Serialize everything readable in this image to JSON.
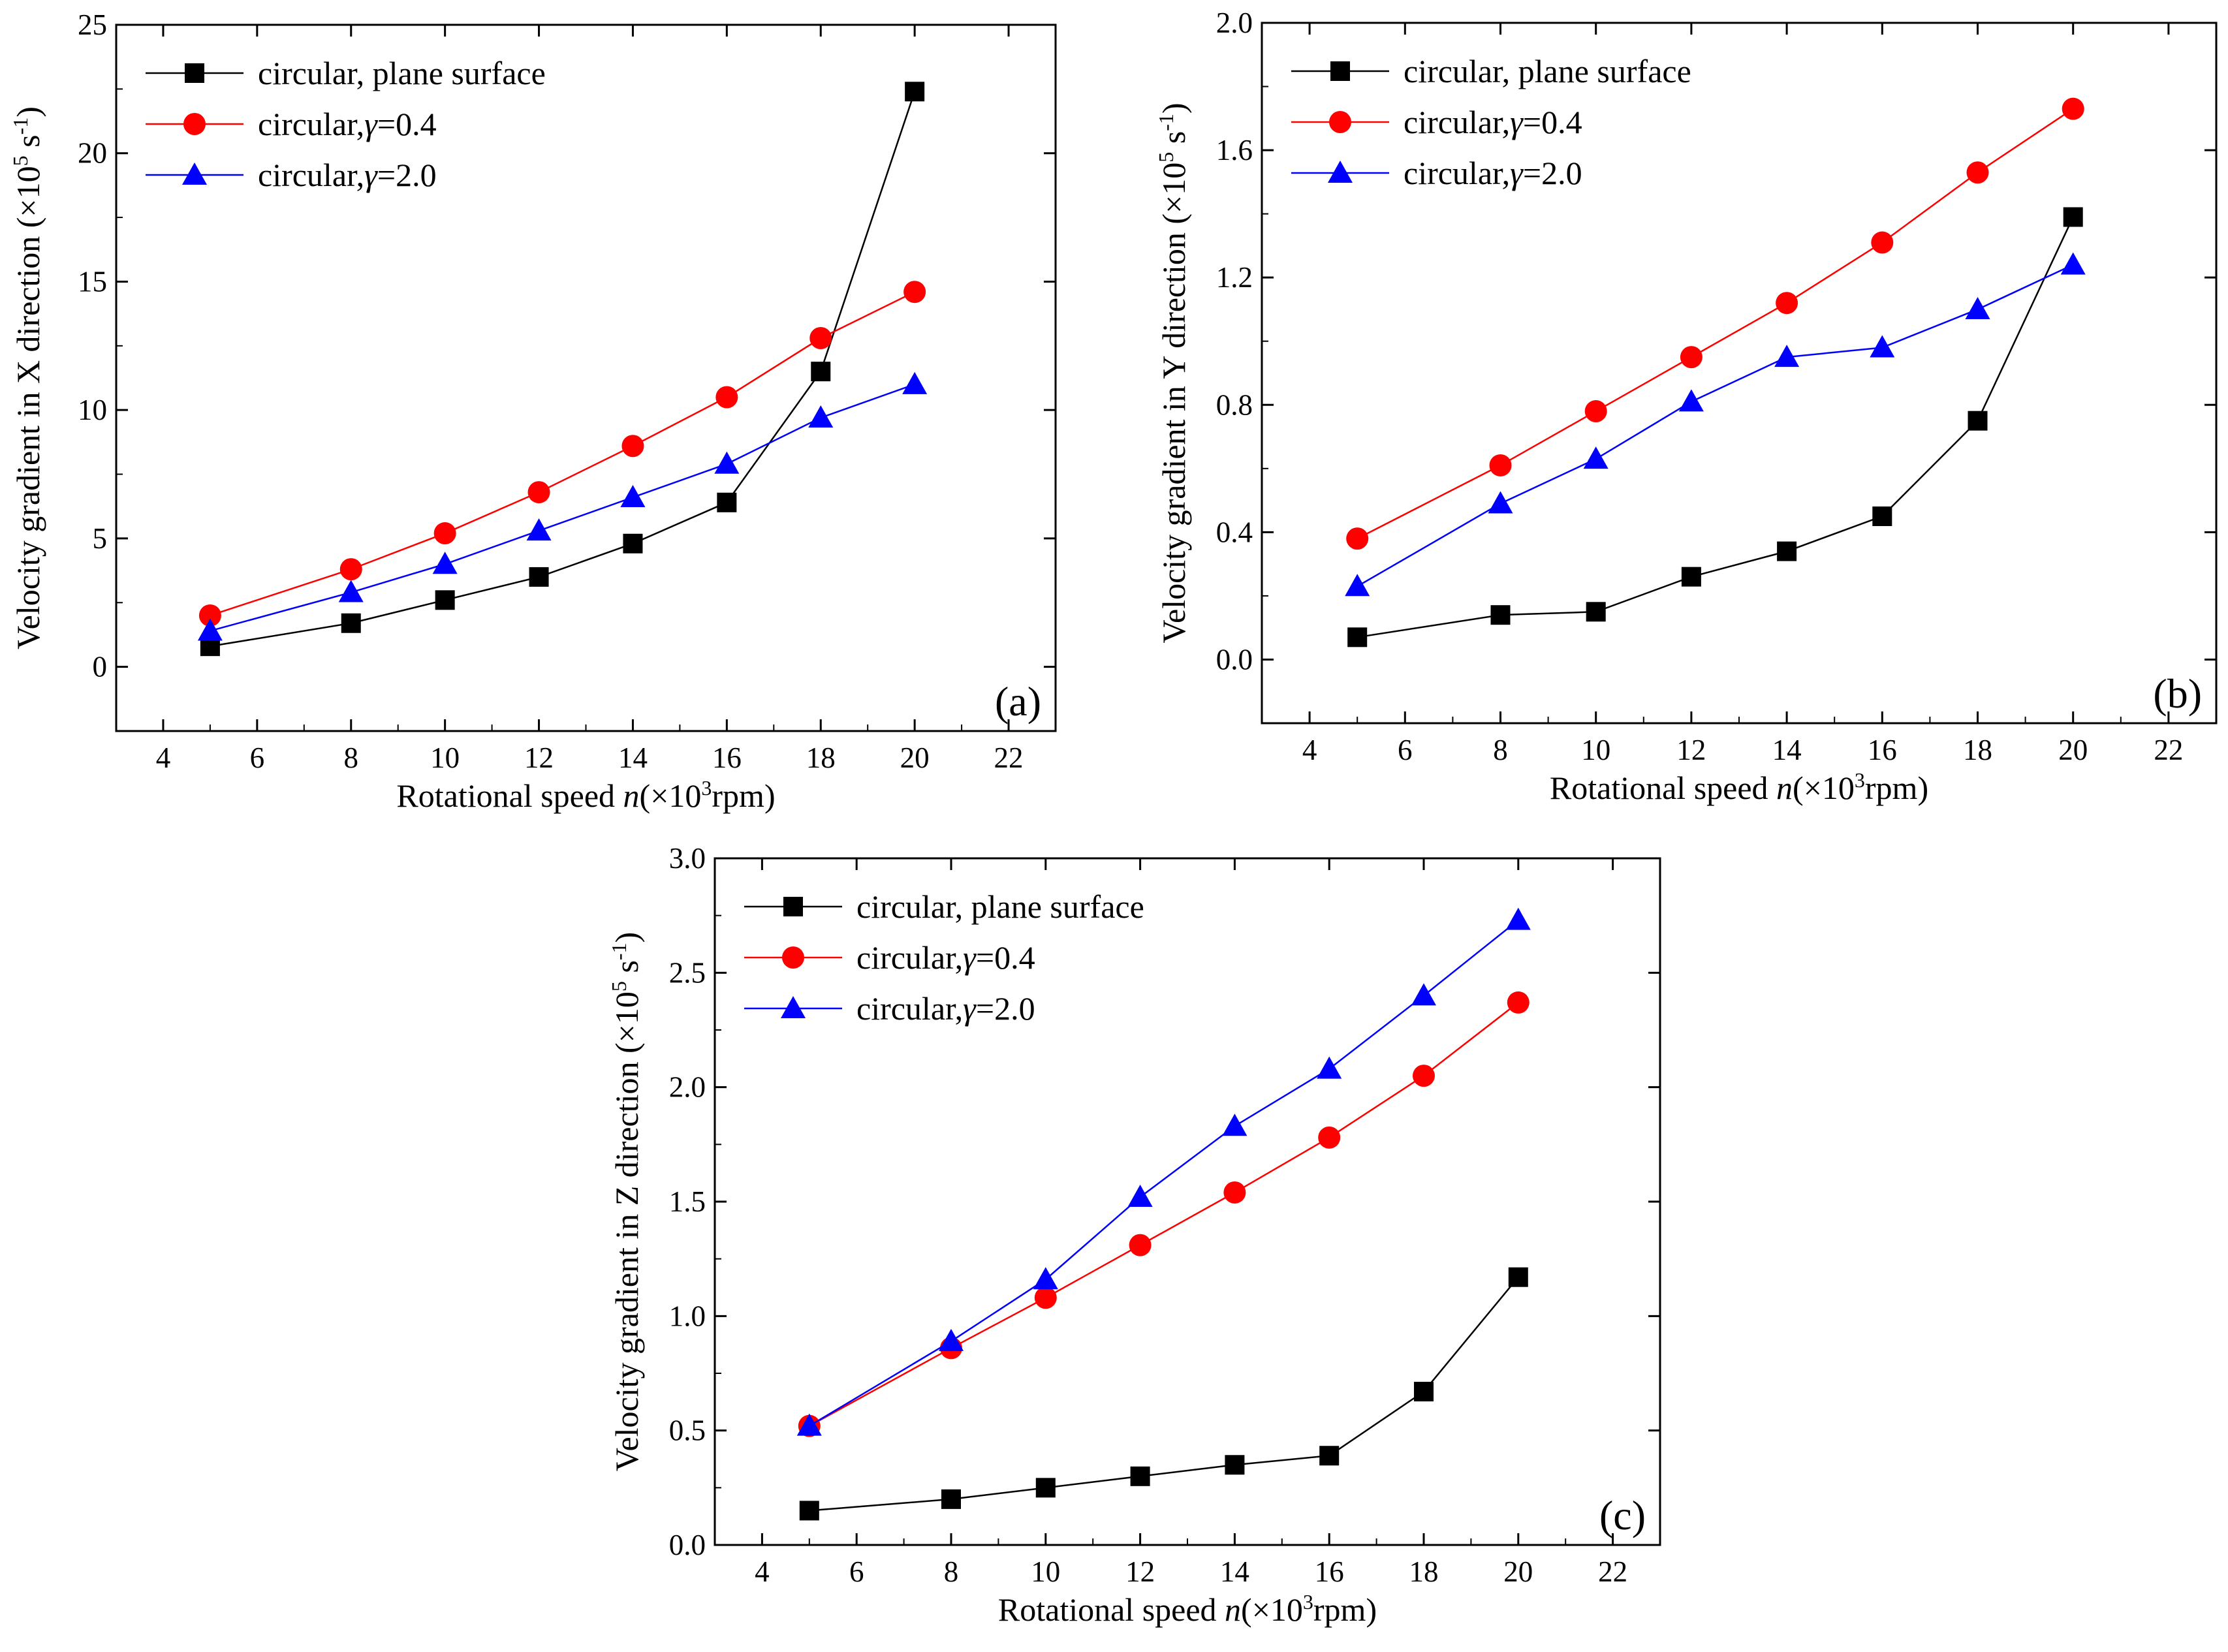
{
  "chart_data": [
    {
      "type": "line",
      "panel_label": "(a)",
      "xlabel": {
        "prefix": "Rotational speed ",
        "var": "n",
        "mid": "(×10",
        "sup": "3",
        "suffix": "rpm)"
      },
      "ylabel": {
        "prefix": "Velocity gradient in X direction (×10",
        "sup": "5",
        "mid": " s",
        "sup2": "-1",
        "suffix": ")"
      },
      "xlim": [
        3,
        23
      ],
      "ylim": [
        -2.5,
        25
      ],
      "xticks": [
        "4",
        "6",
        "8",
        "10",
        "12",
        "14",
        "16",
        "18",
        "20",
        "22"
      ],
      "yticks": [
        "0",
        "5",
        "10",
        "15",
        "20",
        "25"
      ],
      "legend_position": "top-left",
      "x": [
        5,
        8,
        10,
        12,
        14,
        16,
        18,
        20
      ],
      "series": [
        {
          "name_prefix": "circular, plane surface",
          "name_var": "",
          "name_suffix": "",
          "color": "#000000",
          "marker": "square",
          "values": [
            0.8,
            1.7,
            2.6,
            3.5,
            4.8,
            6.4,
            11.5,
            22.4
          ]
        },
        {
          "name_prefix": "circular,",
          "name_var": "γ",
          "name_suffix": "=0.4",
          "color": "#ff0000",
          "marker": "circle",
          "values": [
            2.0,
            3.8,
            5.2,
            6.8,
            8.6,
            10.5,
            12.8,
            14.6
          ]
        },
        {
          "name_prefix": "circular,",
          "name_var": "γ",
          "name_suffix": "=2.0",
          "color": "#0000ff",
          "marker": "triangle",
          "values": [
            1.4,
            2.9,
            4.0,
            5.3,
            6.6,
            7.9,
            9.7,
            11.0
          ]
        }
      ]
    },
    {
      "type": "line",
      "panel_label": "(b)",
      "xlabel": {
        "prefix": "Rotational speed ",
        "var": "n",
        "mid": "(×10",
        "sup": "3",
        "suffix": "rpm)"
      },
      "ylabel": {
        "prefix": "Velocity gradient in Y direction (×10",
        "sup": "5",
        "mid": " s",
        "sup2": "-1",
        "suffix": ")"
      },
      "xlim": [
        3,
        23
      ],
      "ylim": [
        -0.2,
        2.0
      ],
      "xticks": [
        "4",
        "6",
        "8",
        "10",
        "12",
        "14",
        "16",
        "18",
        "20",
        "22"
      ],
      "yticks": [
        "0.0",
        "0.4",
        "0.8",
        "1.2",
        "1.6",
        "2.0"
      ],
      "legend_position": "top-left",
      "x": [
        5,
        8,
        10,
        12,
        14,
        16,
        18,
        20
      ],
      "series": [
        {
          "name_prefix": "circular, plane surface",
          "name_var": "",
          "name_suffix": "",
          "color": "#000000",
          "marker": "square",
          "values": [
            0.07,
            0.14,
            0.15,
            0.26,
            0.34,
            0.45,
            0.75,
            1.39
          ]
        },
        {
          "name_prefix": "circular,",
          "name_var": "γ",
          "name_suffix": "=0.4",
          "color": "#ff0000",
          "marker": "circle",
          "values": [
            0.38,
            0.61,
            0.78,
            0.95,
            1.12,
            1.31,
            1.53,
            1.73
          ]
        },
        {
          "name_prefix": "circular,",
          "name_var": "γ",
          "name_suffix": "=2.0",
          "color": "#0000ff",
          "marker": "triangle",
          "values": [
            0.23,
            0.49,
            0.63,
            0.81,
            0.95,
            0.98,
            1.1,
            1.24
          ]
        }
      ]
    },
    {
      "type": "line",
      "panel_label": "(c)",
      "xlabel": {
        "prefix": "Rotational speed ",
        "var": "n",
        "mid": "(×10",
        "sup": "3",
        "suffix": "rpm)"
      },
      "ylabel": {
        "prefix": "Velocity gradient in Z direction (×10",
        "sup": "5",
        "mid": " s",
        "sup2": "-1",
        "suffix": ")"
      },
      "xlim": [
        3,
        23
      ],
      "ylim": [
        0.0,
        3.0
      ],
      "xticks": [
        "4",
        "6",
        "8",
        "10",
        "12",
        "14",
        "16",
        "18",
        "20",
        "22"
      ],
      "yticks": [
        "0.0",
        "0.5",
        "1.0",
        "1.5",
        "2.0",
        "2.5",
        "3.0"
      ],
      "legend_position": "top-left",
      "x": [
        5,
        8,
        10,
        12,
        14,
        16,
        18,
        20
      ],
      "series": [
        {
          "name_prefix": "circular, plane surface",
          "name_var": "",
          "name_suffix": "",
          "color": "#000000",
          "marker": "square",
          "values": [
            0.15,
            0.2,
            0.25,
            0.3,
            0.35,
            0.39,
            0.67,
            1.17
          ]
        },
        {
          "name_prefix": "circular,",
          "name_var": "γ",
          "name_suffix": "=0.4",
          "color": "#ff0000",
          "marker": "circle",
          "values": [
            0.52,
            0.86,
            1.08,
            1.31,
            1.54,
            1.78,
            2.05,
            2.37
          ]
        },
        {
          "name_prefix": "circular,",
          "name_var": "γ",
          "name_suffix": "=2.0",
          "color": "#0000ff",
          "marker": "triangle",
          "values": [
            0.52,
            0.89,
            1.16,
            1.52,
            1.83,
            2.08,
            2.4,
            2.73
          ]
        }
      ]
    }
  ]
}
